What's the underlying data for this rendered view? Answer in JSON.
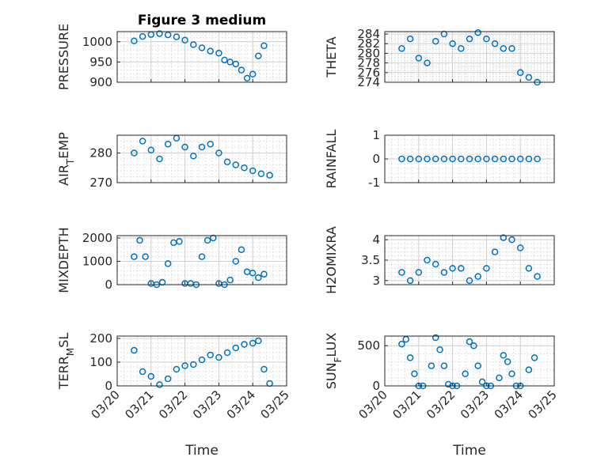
{
  "figure": {
    "title": "Figure 3 medium",
    "marker_color": "#0072bd",
    "marker": "circle-open",
    "grid": true,
    "minor_grid": true
  },
  "chart_data": [
    {
      "id": "pressure",
      "type": "scatter",
      "title": "Figure 3 medium",
      "ylabel": "PRESSURE",
      "ylabel_parts": [
        {
          "text": "PRESSURE",
          "sub": false
        }
      ],
      "xlim": [
        "03/20",
        "03/25"
      ],
      "ylim": [
        900,
        1025
      ],
      "yticks": [
        900,
        950,
        1000
      ],
      "x_tick_labels_shown": false,
      "x": [
        "03/20 12:00",
        "03/20 18:00",
        "03/21 00:00",
        "03/21 06:00",
        "03/21 12:00",
        "03/21 18:00",
        "03/22 00:00",
        "03/22 06:00",
        "03/22 12:00",
        "03/22 18:00",
        "03/23 00:00",
        "03/23 04:00",
        "03/23 08:00",
        "03/23 12:00",
        "03/23 16:00",
        "03/23 20:00",
        "03/24 00:00",
        "03/24 04:00",
        "03/24 08:00"
      ],
      "y": [
        1002,
        1013,
        1018,
        1020,
        1017,
        1012,
        1004,
        993,
        985,
        977,
        972,
        955,
        950,
        945,
        930,
        910,
        920,
        965,
        990
      ]
    },
    {
      "id": "theta",
      "type": "scatter",
      "ylabel": "THETA",
      "ylabel_parts": [
        {
          "text": "THETA",
          "sub": false
        }
      ],
      "xlim": [
        "03/20",
        "03/25"
      ],
      "ylim": [
        274,
        284.5
      ],
      "yticks": [
        274,
        276,
        278,
        280,
        282,
        284
      ],
      "x_tick_labels_shown": false,
      "x": [
        "03/20 12:00",
        "03/20 18:00",
        "03/21 00:00",
        "03/21 06:00",
        "03/21 12:00",
        "03/21 18:00",
        "03/22 00:00",
        "03/22 06:00",
        "03/22 12:00",
        "03/22 18:00",
        "03/23 00:00",
        "03/23 06:00",
        "03/23 12:00",
        "03/23 18:00",
        "03/24 00:00",
        "03/24 06:00",
        "03/24 12:00"
      ],
      "y": [
        281,
        283,
        279,
        278,
        282.5,
        284,
        282,
        281,
        283,
        284.3,
        283,
        282,
        281,
        281,
        276,
        275,
        274
      ]
    },
    {
      "id": "air_temp",
      "type": "scatter",
      "ylabel": "AIR_TEMP",
      "ylabel_parts": [
        {
          "text": "AIR",
          "sub": false
        },
        {
          "text": "T",
          "sub": true
        },
        {
          "text": "EMP",
          "sub": false
        }
      ],
      "xlim": [
        "03/20",
        "03/25"
      ],
      "ylim": [
        270,
        286
      ],
      "yticks": [
        270,
        280
      ],
      "x_tick_labels_shown": false,
      "x": [
        "03/20 12:00",
        "03/20 18:00",
        "03/21 00:00",
        "03/21 06:00",
        "03/21 12:00",
        "03/21 18:00",
        "03/22 00:00",
        "03/22 06:00",
        "03/22 12:00",
        "03/22 18:00",
        "03/23 00:00",
        "03/23 06:00",
        "03/23 12:00",
        "03/23 18:00",
        "03/24 00:00",
        "03/24 06:00",
        "03/24 12:00"
      ],
      "y": [
        280,
        284,
        281,
        278,
        283,
        285,
        282,
        279,
        282,
        283,
        280,
        277,
        276,
        275,
        274,
        273,
        272.5
      ]
    },
    {
      "id": "rainfall",
      "type": "scatter",
      "ylabel": "RAINFALL",
      "ylabel_parts": [
        {
          "text": "RAINFALL",
          "sub": false
        }
      ],
      "xlim": [
        "03/20",
        "03/25"
      ],
      "ylim": [
        -1,
        1
      ],
      "yticks": [
        -1,
        0,
        1
      ],
      "x_tick_labels_shown": false,
      "x": [
        "03/20 12:00",
        "03/20 18:00",
        "03/21 00:00",
        "03/21 06:00",
        "03/21 12:00",
        "03/21 18:00",
        "03/22 00:00",
        "03/22 06:00",
        "03/22 12:00",
        "03/22 18:00",
        "03/23 00:00",
        "03/23 06:00",
        "03/23 12:00",
        "03/23 18:00",
        "03/24 00:00",
        "03/24 06:00",
        "03/24 12:00"
      ],
      "y": [
        0,
        0,
        0,
        0,
        0,
        0,
        0,
        0,
        0,
        0,
        0,
        0,
        0,
        0,
        0,
        0,
        0
      ]
    },
    {
      "id": "mixdepth",
      "type": "scatter",
      "ylabel": "MIXDEPTH",
      "ylabel_parts": [
        {
          "text": "MIXDEPTH",
          "sub": false
        }
      ],
      "xlim": [
        "03/20",
        "03/25"
      ],
      "ylim": [
        0,
        2100
      ],
      "yticks": [
        0,
        1000,
        2000
      ],
      "x_tick_labels_shown": false,
      "x": [
        "03/20 12:00",
        "03/20 16:00",
        "03/20 20:00",
        "03/21 00:00",
        "03/21 04:00",
        "03/21 08:00",
        "03/21 12:00",
        "03/21 16:00",
        "03/21 20:00",
        "03/22 00:00",
        "03/22 04:00",
        "03/22 08:00",
        "03/22 12:00",
        "03/22 16:00",
        "03/22 20:00",
        "03/23 00:00",
        "03/23 04:00",
        "03/23 08:00",
        "03/23 12:00",
        "03/23 16:00",
        "03/23 20:00",
        "03/24 00:00",
        "03/24 04:00",
        "03/24 08:00"
      ],
      "y": [
        1200,
        1900,
        1200,
        50,
        0,
        100,
        900,
        1800,
        1850,
        50,
        50,
        0,
        1200,
        1900,
        2000,
        50,
        0,
        200,
        1000,
        1500,
        550,
        500,
        300,
        450
      ]
    },
    {
      "id": "h2omixra",
      "type": "scatter",
      "ylabel": "H2OMIXRA",
      "ylabel_parts": [
        {
          "text": "H2OMIXRA",
          "sub": false
        }
      ],
      "xlim": [
        "03/20",
        "03/25"
      ],
      "ylim": [
        2.9,
        4.1
      ],
      "yticks": [
        3,
        3.5,
        4
      ],
      "x_tick_labels_shown": false,
      "x": [
        "03/20 12:00",
        "03/20 18:00",
        "03/21 00:00",
        "03/21 06:00",
        "03/21 12:00",
        "03/21 18:00",
        "03/22 00:00",
        "03/22 06:00",
        "03/22 12:00",
        "03/22 18:00",
        "03/23 00:00",
        "03/23 06:00",
        "03/23 12:00",
        "03/23 18:00",
        "03/24 00:00",
        "03/24 06:00",
        "03/24 12:00"
      ],
      "y": [
        3.2,
        3.0,
        3.2,
        3.5,
        3.4,
        3.2,
        3.3,
        3.3,
        3.0,
        3.1,
        3.3,
        3.7,
        4.05,
        4.0,
        3.8,
        3.3,
        3.1
      ]
    },
    {
      "id": "terr_msl",
      "type": "scatter",
      "ylabel": "TERR_MSL",
      "ylabel_parts": [
        {
          "text": "TERR",
          "sub": false
        },
        {
          "text": "M",
          "sub": true
        },
        {
          "text": "SL",
          "sub": false
        }
      ],
      "xlabel": "Time",
      "xlim": [
        "03/20",
        "03/25"
      ],
      "ylim": [
        0,
        210
      ],
      "yticks": [
        0,
        100,
        200
      ],
      "x_tick_labels_shown": true,
      "xticks": [
        "03/20",
        "03/21",
        "03/22",
        "03/23",
        "03/24",
        "03/25"
      ],
      "x": [
        "03/20 12:00",
        "03/20 18:00",
        "03/21 00:00",
        "03/21 06:00",
        "03/21 12:00",
        "03/21 18:00",
        "03/22 00:00",
        "03/22 06:00",
        "03/22 12:00",
        "03/22 18:00",
        "03/23 00:00",
        "03/23 06:00",
        "03/23 12:00",
        "03/23 18:00",
        "03/24 00:00",
        "03/24 04:00",
        "03/24 08:00",
        "03/24 12:00"
      ],
      "y": [
        150,
        60,
        40,
        5,
        30,
        70,
        85,
        90,
        110,
        130,
        120,
        140,
        160,
        175,
        180,
        190,
        70,
        10
      ]
    },
    {
      "id": "sun_flux",
      "type": "scatter",
      "ylabel": "SUN_FLUX",
      "ylabel_parts": [
        {
          "text": "SUN",
          "sub": false
        },
        {
          "text": "F",
          "sub": true
        },
        {
          "text": "LUX",
          "sub": false
        }
      ],
      "xlabel": "Time",
      "xlim": [
        "03/20",
        "03/25"
      ],
      "ylim": [
        0,
        620
      ],
      "yticks": [
        0,
        500
      ],
      "x_tick_labels_shown": true,
      "xticks": [
        "03/20",
        "03/21",
        "03/22",
        "03/23",
        "03/24",
        "03/25"
      ],
      "x": [
        "03/20 12:00",
        "03/20 15:00",
        "03/20 18:00",
        "03/20 21:00",
        "03/21 00:00",
        "03/21 03:00",
        "03/21 09:00",
        "03/21 12:00",
        "03/21 15:00",
        "03/21 18:00",
        "03/21 21:00",
        "03/22 00:00",
        "03/22 03:00",
        "03/22 09:00",
        "03/22 12:00",
        "03/22 15:00",
        "03/22 18:00",
        "03/22 21:00",
        "03/23 00:00",
        "03/23 03:00",
        "03/23 09:00",
        "03/23 12:00",
        "03/23 15:00",
        "03/23 18:00",
        "03/23 21:00",
        "03/24 00:00",
        "03/24 06:00",
        "03/24 10:00"
      ],
      "y": [
        520,
        580,
        350,
        150,
        0,
        0,
        250,
        600,
        450,
        250,
        20,
        0,
        0,
        150,
        550,
        500,
        250,
        50,
        0,
        0,
        100,
        380,
        300,
        150,
        0,
        0,
        200,
        350
      ]
    }
  ]
}
